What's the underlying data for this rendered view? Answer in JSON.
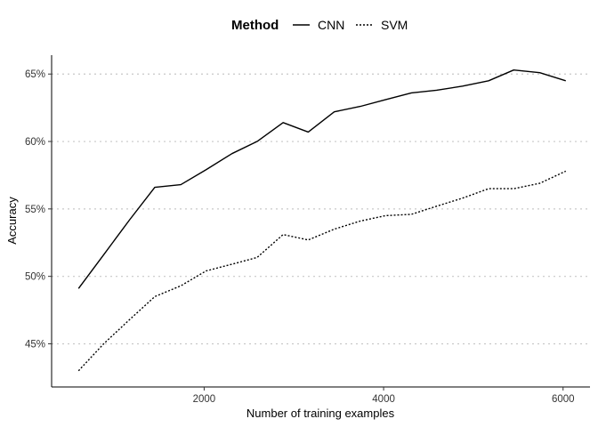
{
  "chart_data": {
    "type": "line",
    "xlabel": "Number of training examples",
    "ylabel": "Accuracy",
    "xlim": [
      300,
      6300
    ],
    "ylim": [
      0.418,
      0.664
    ],
    "x_ticks": [
      2000,
      4000,
      6000
    ],
    "y_ticks": [
      0.45,
      0.5,
      0.55,
      0.6,
      0.65
    ],
    "y_tick_labels": [
      "45%",
      "50%",
      "55%",
      "60%",
      "65%"
    ],
    "grid": "horizontal dotted at y ticks",
    "legend": {
      "title": "Method",
      "placement": "top",
      "entries": [
        "CNN",
        "SVM"
      ]
    },
    "series": [
      {
        "name": "CNN",
        "line_style": "solid",
        "color": "#000000",
        "x": [
          600,
          880,
          1170,
          1450,
          1740,
          2020,
          2310,
          2590,
          2880,
          3160,
          3450,
          3740,
          4020,
          4310,
          4590,
          4880,
          5170,
          5450,
          5740,
          6030
        ],
        "y": [
          0.491,
          0.516,
          0.542,
          0.566,
          0.568,
          0.579,
          0.591,
          0.6,
          0.614,
          0.607,
          0.622,
          0.626,
          0.631,
          0.636,
          0.638,
          0.641,
          0.645,
          0.653,
          0.651,
          0.645
        ]
      },
      {
        "name": "SVM",
        "line_style": "dotted",
        "color": "#000000",
        "x": [
          600,
          880,
          1170,
          1450,
          1740,
          2020,
          2310,
          2590,
          2880,
          3160,
          3450,
          3740,
          4020,
          4310,
          4590,
          4880,
          5170,
          5450,
          5740,
          6030
        ],
        "y": [
          0.43,
          0.45,
          0.468,
          0.485,
          0.493,
          0.504,
          0.509,
          0.514,
          0.531,
          0.527,
          0.535,
          0.541,
          0.545,
          0.546,
          0.552,
          0.558,
          0.565,
          0.565,
          0.569,
          0.578
        ]
      }
    ]
  }
}
